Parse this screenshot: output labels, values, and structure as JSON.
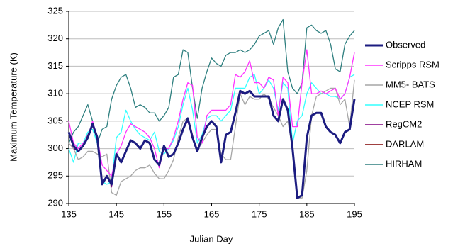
{
  "chart_data": {
    "type": "line",
    "xlabel": "Julian Day",
    "ylabel": "Maximum Temperature (K)",
    "x": [
      135,
      136,
      137,
      138,
      139,
      140,
      141,
      142,
      143,
      144,
      145,
      146,
      147,
      148,
      149,
      150,
      151,
      152,
      153,
      154,
      155,
      156,
      157,
      158,
      159,
      160,
      161,
      162,
      163,
      164,
      165,
      166,
      167,
      168,
      169,
      170,
      171,
      172,
      173,
      174,
      175,
      176,
      177,
      178,
      179,
      180,
      181,
      182,
      183,
      184,
      185,
      186,
      187,
      188,
      189,
      190,
      191,
      192,
      193,
      194,
      195
    ],
    "xlim": [
      135,
      195
    ],
    "xticks": [
      135,
      145,
      155,
      165,
      175,
      185,
      195
    ],
    "ylim": [
      290,
      325
    ],
    "yticks": [
      290,
      295,
      300,
      305,
      310,
      315,
      320,
      325
    ],
    "grid": true,
    "legend": "right",
    "series": [
      {
        "name": "Observed",
        "color": "#1c1c80",
        "values": [
          303,
          300.5,
          299.5,
          300.5,
          302,
          304.5,
          302,
          293.5,
          295,
          293.5,
          299,
          297.5,
          299.5,
          301.5,
          301,
          300,
          301.5,
          301,
          298,
          297,
          300.5,
          298.5,
          299,
          301,
          303.5,
          305.5,
          302,
          299.5,
          302,
          304,
          305,
          304,
          297.5,
          302.5,
          303,
          306.5,
          310.5,
          310,
          310.5,
          309.5,
          309.5,
          309.5,
          309.5,
          306,
          305,
          309,
          307,
          300,
          291,
          291.5,
          302,
          306,
          306.5,
          306.5,
          304,
          303,
          302.5,
          301,
          303,
          303.5,
          309
        ]
      },
      {
        "name": "Scripps RSM",
        "color": "#ff33ff",
        "values": [
          305,
          301,
          300,
          301,
          302,
          305,
          302,
          297,
          296,
          295,
          299,
          300.5,
          303,
          304.5,
          304,
          303.5,
          303,
          302,
          300,
          296.5,
          300,
          300,
          302,
          305,
          309,
          312,
          311.5,
          302,
          301,
          306,
          307,
          307,
          307,
          307,
          308,
          313.5,
          313,
          314,
          316,
          312,
          312,
          311,
          313,
          312.5,
          306,
          313,
          312,
          304,
          304,
          312,
          318,
          310,
          310,
          310.5,
          310,
          310.5,
          311,
          309,
          310,
          313,
          317.5
        ]
      },
      {
        "name": "MM5- BATS",
        "color": "#a6a6a6",
        "values": [
          301,
          300,
          298,
          298.5,
          299.5,
          299.5,
          299,
          298.5,
          299,
          292,
          291.5,
          294,
          294.5,
          295,
          296,
          296.5,
          296.5,
          297,
          295.5,
          294.5,
          294.5,
          296,
          298,
          302,
          305,
          305.5,
          302,
          300,
          301,
          302.5,
          303.5,
          303.5,
          299,
          298,
          298,
          304,
          310,
          308,
          309.5,
          309,
          309,
          310,
          309,
          307.5,
          306,
          304,
          305,
          300,
          291,
          291,
          296,
          306,
          309.5,
          310,
          310.5,
          311,
          311,
          308,
          309,
          304,
          312.5
        ]
      },
      {
        "name": "NCEP RSM",
        "color": "#33ffff",
        "values": [
          300,
          297.5,
          301,
          301,
          303,
          303.5,
          301,
          294,
          293.5,
          294,
          302,
          303,
          307,
          305,
          303.5,
          302.5,
          302,
          301.5,
          303,
          299.5,
          299,
          300,
          301.5,
          304,
          308,
          311,
          307,
          301,
          302.5,
          305.5,
          306,
          306,
          305,
          306,
          307,
          311,
          311,
          311,
          313,
          313.5,
          310,
          311,
          312.5,
          311,
          307,
          312,
          311,
          301,
          305,
          306,
          310,
          312,
          311,
          310,
          310,
          309.5,
          309.5,
          309,
          310,
          313,
          313.5
        ]
      },
      {
        "name": "RegCM2",
        "color": "#800080",
        "values": [
          303,
          300,
          299.5,
          300.5,
          302.5,
          304.5,
          302,
          293.5,
          295,
          293,
          299,
          297.5,
          299.5,
          301.5,
          301,
          300,
          301.5,
          301,
          298,
          297,
          300.5,
          298.5,
          299,
          301,
          303.5,
          305,
          302,
          299.5,
          302,
          304,
          305,
          304,
          297.5,
          302.5,
          303,
          306.5,
          310,
          310,
          310.5,
          309.5,
          309.5,
          309.5,
          309.5,
          306,
          305,
          309,
          307,
          300,
          291,
          291.5,
          302,
          306,
          306.5,
          306.5,
          304,
          303,
          302.5,
          301,
          303,
          303.5,
          309
        ]
      },
      {
        "name": "DARLAM",
        "color": "#800000",
        "values": [
          303,
          300.5,
          299.5,
          300.5,
          302,
          304.5,
          302,
          293.5,
          295,
          293.5,
          299,
          297.5,
          299.5,
          301.5,
          301,
          300,
          301.5,
          301,
          298,
          297,
          300.5,
          298.5,
          299,
          301,
          303.5,
          305.5,
          302,
          299.5,
          302,
          304,
          305,
          304,
          297.5,
          302.5,
          303,
          306.5,
          310.5,
          310,
          310.5,
          309.5,
          309.5,
          309.5,
          309.5,
          306,
          305,
          309,
          307,
          300,
          291,
          291.5,
          302,
          306,
          306.5,
          306.5,
          304,
          303,
          302.5,
          301,
          303,
          303.5,
          309
        ]
      },
      {
        "name": "HIRHAM",
        "color": "#2e7f7f",
        "values": [
          301,
          303,
          304,
          306,
          308,
          305,
          301,
          303.5,
          304,
          309,
          311.5,
          313,
          313.5,
          311,
          307.5,
          308,
          307.5,
          306.5,
          306.5,
          305,
          306,
          307.5,
          313,
          313.5,
          318,
          317.5,
          311,
          305.5,
          311,
          314,
          316.5,
          315.5,
          315,
          317,
          317.5,
          317.5,
          318,
          317.5,
          318,
          319,
          320.5,
          321,
          321.5,
          319,
          322,
          323.5,
          314,
          311,
          310,
          312,
          322,
          322.5,
          321.5,
          321,
          321.5,
          319,
          314.5,
          314,
          319,
          320.5,
          321.5
        ]
      }
    ]
  }
}
